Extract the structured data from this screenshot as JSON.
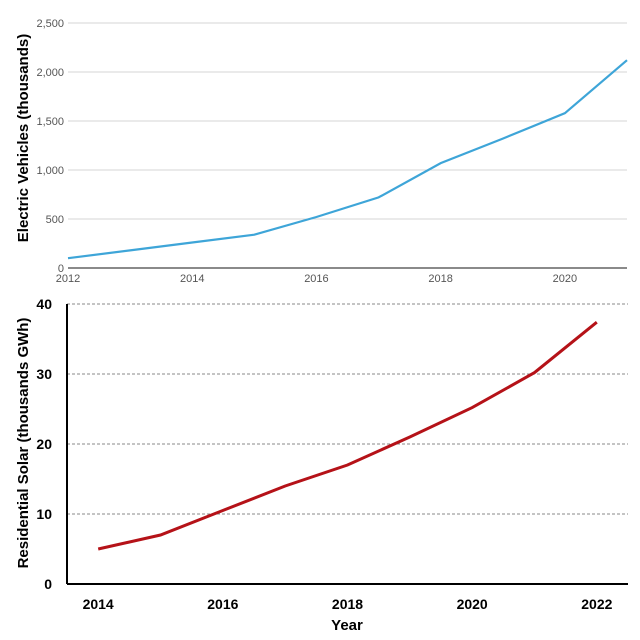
{
  "chart_data": [
    {
      "type": "line",
      "title": "",
      "xlabel": "",
      "ylabel": "Electric Vehicles (thousands)",
      "x": [
        2012,
        2013,
        2014,
        2015,
        2016,
        2017,
        2018,
        2019,
        2020,
        2021
      ],
      "series": [
        {
          "values": [
            100,
            180,
            260,
            340,
            520,
            720,
            1070,
            1320,
            1580,
            2120
          ]
        }
      ],
      "xticks": [
        2012,
        2014,
        2016,
        2018,
        2020
      ],
      "xtick_labels": [
        "2012",
        "2014",
        "2016",
        "2018",
        "2020"
      ],
      "yticks": [
        0,
        500,
        1000,
        1500,
        2000,
        2500
      ],
      "ytick_labels": [
        "0",
        "500",
        "1,000",
        "1,500",
        "2,000",
        "2,500"
      ],
      "xlim": [
        2012,
        2021
      ],
      "ylim": [
        0,
        2500
      ],
      "grid": "horizontal",
      "color": "#3ea5d8"
    },
    {
      "type": "line",
      "title": "",
      "xlabel": "Year",
      "ylabel": "Residential Solar (thousands GWh)",
      "x": [
        2014,
        2015,
        2016,
        2017,
        2018,
        2019,
        2020,
        2021,
        2022
      ],
      "series": [
        {
          "values": [
            5,
            7,
            10.5,
            14,
            17,
            21,
            25.2,
            30.2,
            37.4
          ]
        }
      ],
      "xticks": [
        2014,
        2016,
        2018,
        2020,
        2022
      ],
      "xtick_labels": [
        "2014",
        "2016",
        "2018",
        "2020",
        "2022"
      ],
      "yticks": [
        0,
        10,
        20,
        30,
        40
      ],
      "ytick_labels": [
        "0",
        "10",
        "20",
        "30",
        "40"
      ],
      "xlim": [
        2013.5,
        2022.5
      ],
      "ylim": [
        0,
        40
      ],
      "grid": "horizontal-dashed",
      "color": "#b51218"
    }
  ]
}
